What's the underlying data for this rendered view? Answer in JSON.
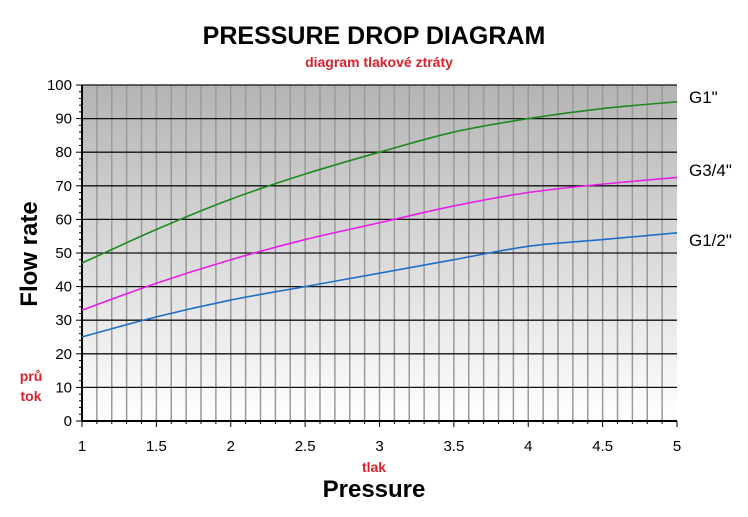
{
  "chart_data": {
    "type": "line",
    "title": "PRESSURE DROP DIAGRAM",
    "subtitle": "diagram tlakové ztráty",
    "xlabel": "Pressure",
    "xlabel_sub": "tlak",
    "ylabel": "Flow rate",
    "ylabel_sub": [
      "prů",
      "tok"
    ],
    "xlim": [
      1,
      5
    ],
    "ylim": [
      0,
      100
    ],
    "xticks": [
      "1",
      "1.5",
      "2",
      "2.5",
      "3",
      "3.5",
      "4",
      "4.5",
      "5"
    ],
    "yticks": [
      "0",
      "10",
      "20",
      "30",
      "40",
      "50",
      "60",
      "70",
      "80",
      "90",
      "100"
    ],
    "grid": true,
    "x": [
      1,
      1.5,
      2,
      2.5,
      3,
      3.5,
      4,
      4.5,
      5
    ],
    "series": [
      {
        "name": "G1\"",
        "color": "#1e8a1e",
        "values": [
          47,
          57,
          66,
          73.5,
          80,
          86,
          90,
          93,
          95
        ]
      },
      {
        "name": "G3/4\"",
        "color": "#e81ee8",
        "values": [
          33,
          41,
          48,
          54,
          59,
          64,
          68,
          70.5,
          72.5
        ]
      },
      {
        "name": "G1/2\"",
        "color": "#1e6fc8",
        "values": [
          25,
          31,
          36,
          40,
          44,
          48,
          52,
          54,
          56
        ]
      }
    ],
    "legend": "right, at line ends"
  }
}
